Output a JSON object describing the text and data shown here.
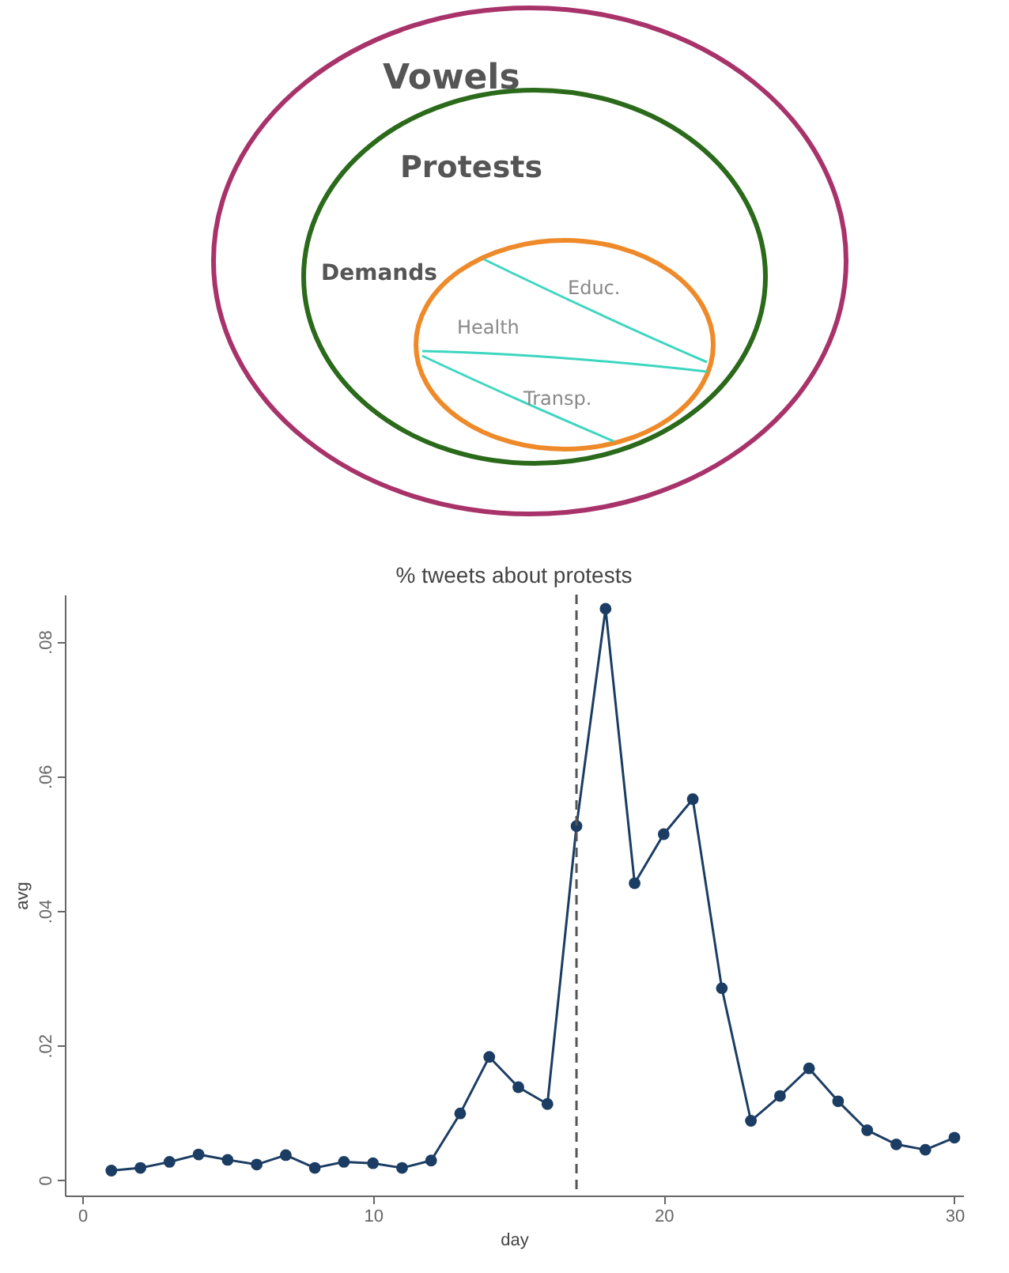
{
  "chart_data": {
    "type": "line",
    "title": "% tweets about protests",
    "xlabel": "day",
    "ylabel": "avg",
    "x": [
      1,
      2,
      3,
      4,
      5,
      6,
      7,
      8,
      9,
      10,
      11,
      12,
      13,
      14,
      15,
      16,
      17,
      18,
      19,
      20,
      21,
      22,
      23,
      24,
      25,
      26,
      27,
      28,
      29,
      30
    ],
    "series": [
      {
        "color": "#1c3d63",
        "values": [
          0.0014,
          0.0018,
          0.0027,
          0.0038,
          0.003,
          0.0023,
          0.0037,
          0.0018,
          0.0027,
          0.0025,
          0.0018,
          0.0029,
          0.0099,
          0.0183,
          0.0138,
          0.0113,
          0.0526,
          0.0849,
          0.0441,
          0.0514,
          0.0566,
          0.0285,
          0.0088,
          0.0125,
          0.0166,
          0.0117,
          0.0074,
          0.0053,
          0.0045,
          0.0063
        ]
      }
    ],
    "xlim": [
      -0.6,
      30.3
    ],
    "xticks": [
      0,
      10,
      20,
      30
    ],
    "ylim": [
      -0.0023,
      0.087
    ],
    "yticks": [
      0,
      {
        "value": 0.02,
        "label": ".02"
      },
      {
        "value": 0.04,
        "label": ".04"
      },
      {
        "value": 0.06,
        "label": ".06"
      },
      {
        "value": 0.08,
        "label": ".08"
      }
    ],
    "ref_lines": [
      {
        "axis": "x",
        "value": 17,
        "color": "#555555",
        "line_style": "dashed"
      }
    ],
    "grid": false,
    "marker": "circle",
    "line_style": "solid",
    "annotations": [
      "Vowels",
      "Protests",
      "Demands",
      "Educ.",
      "Health",
      "Transp."
    ]
  }
}
